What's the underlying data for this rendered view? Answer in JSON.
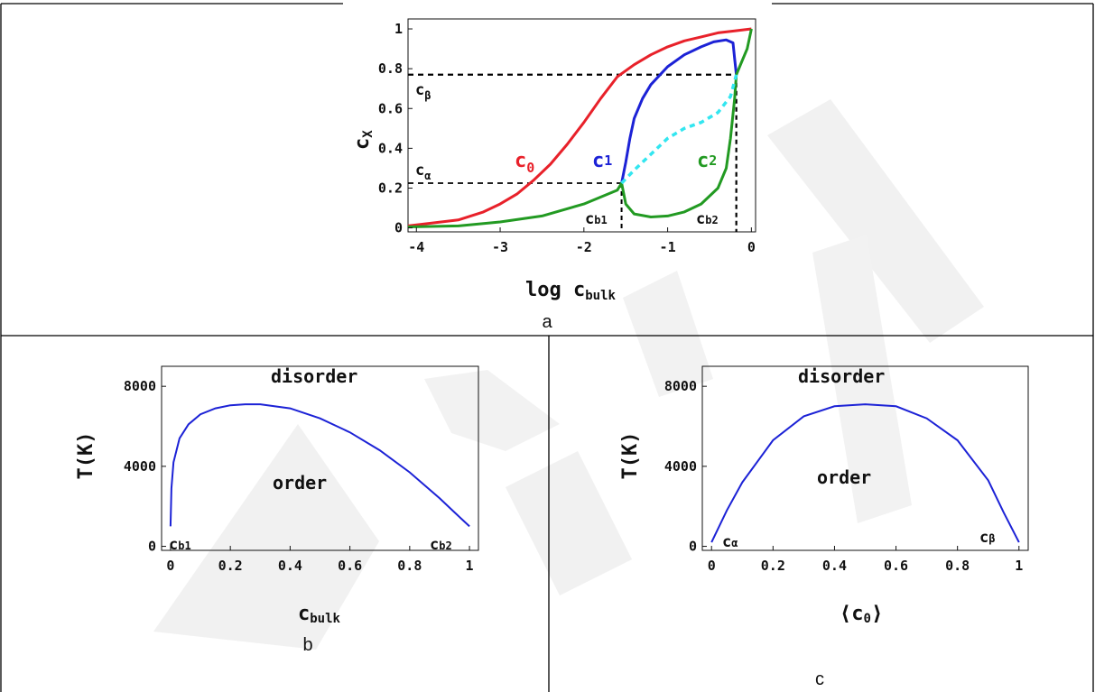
{
  "watermark": "EPRINT",
  "captions": {
    "a": "a",
    "b": "b",
    "c": "c"
  },
  "panel_a": {
    "xlabel": "log c",
    "xlabel_sub": "bulk",
    "ylabel": "c",
    "ylabel_sub": "X",
    "xticks": [
      "-4",
      "-3",
      "-2",
      "-1",
      "0"
    ],
    "yticks": [
      "0",
      "0.2",
      "0.4",
      "0.6",
      "0.8",
      "1"
    ],
    "labels": {
      "c_beta": "c",
      "c_beta_sub": "β",
      "c_alpha": "c",
      "c_alpha_sub": "α",
      "c0": "c",
      "c0_sub": "0",
      "c1": "c",
      "c1_sub": "1",
      "c2": "c",
      "c2_sub": "2",
      "cb1": "c",
      "cb1_sub": "b1",
      "cb2": "c",
      "cb2_sub": "b2"
    },
    "colors": {
      "c0": "#e8212a",
      "c1": "#1c22d6",
      "c2": "#229a22",
      "unstable": "#33e6f0"
    }
  },
  "panel_b": {
    "xlabel": "c",
    "xlabel_sub": "bulk",
    "ylabel": "T(K)",
    "xticks": [
      "0",
      "0.2",
      "0.4",
      "0.6",
      "0.8",
      "1"
    ],
    "yticks": [
      "0",
      "4000",
      "8000"
    ],
    "region_top": "disorder",
    "region_inner": "order",
    "end_left": "c",
    "end_left_sub": "b1",
    "end_right": "c",
    "end_right_sub": "b2",
    "color": "#1c22d6"
  },
  "panel_c": {
    "xlabel": "⟨c",
    "xlabel_sub": "0",
    "xlabel_close": "⟩",
    "ylabel": "T(K)",
    "xticks": [
      "0",
      "0.2",
      "0.4",
      "0.6",
      "0.8",
      "1"
    ],
    "yticks": [
      "0",
      "4000",
      "8000"
    ],
    "region_top": "disorder",
    "region_inner": "order",
    "end_left": "c",
    "end_left_sub": "α",
    "end_right": "c",
    "end_right_sub": "β",
    "color": "#1c22d6"
  },
  "chart_data": [
    {
      "type": "line",
      "xlabel": "log c_bulk",
      "ylabel": "c_X",
      "xlim": [
        -4.1,
        0.05
      ],
      "ylim": [
        -0.02,
        1.05
      ],
      "reference_lines": {
        "c_alpha": 0.225,
        "c_beta": 0.77,
        "log_cb1": -1.55,
        "log_cb2": -0.18
      },
      "series": [
        {
          "name": "c0",
          "x": [
            -4.1,
            -3.5,
            -3.2,
            -3.0,
            -2.8,
            -2.6,
            -2.4,
            -2.2,
            -2.0,
            -1.8,
            -1.6,
            -1.4,
            -1.2,
            -1.0,
            -0.8,
            -0.6,
            -0.4,
            -0.2,
            0.0
          ],
          "y": [
            0.01,
            0.04,
            0.08,
            0.12,
            0.17,
            0.24,
            0.32,
            0.42,
            0.53,
            0.65,
            0.76,
            0.82,
            0.87,
            0.91,
            0.94,
            0.96,
            0.98,
            0.99,
            1.0
          ]
        },
        {
          "name": "c1",
          "x": [
            -1.55,
            -1.5,
            -1.45,
            -1.4,
            -1.3,
            -1.2,
            -1.0,
            -0.8,
            -0.6,
            -0.45,
            -0.3,
            -0.22,
            -0.2,
            -0.18
          ],
          "y": [
            0.225,
            0.33,
            0.45,
            0.55,
            0.65,
            0.72,
            0.81,
            0.87,
            0.91,
            0.935,
            0.945,
            0.93,
            0.85,
            0.77
          ]
        },
        {
          "name": "c2",
          "x": [
            -4.1,
            -3.5,
            -3.0,
            -2.5,
            -2.0,
            -1.6,
            -1.55,
            -1.5,
            -1.4,
            -1.2,
            -1.0,
            -0.8,
            -0.6,
            -0.4,
            -0.3,
            -0.25,
            -0.2,
            -0.18,
            -0.12,
            -0.05,
            0.0
          ],
          "y": [
            0.005,
            0.01,
            0.03,
            0.06,
            0.12,
            0.19,
            0.225,
            0.12,
            0.07,
            0.055,
            0.06,
            0.08,
            0.12,
            0.2,
            0.3,
            0.45,
            0.65,
            0.77,
            0.83,
            0.9,
            1.0
          ]
        },
        {
          "name": "unstable",
          "x": [
            -1.55,
            -1.4,
            -1.2,
            -1.0,
            -0.8,
            -0.6,
            -0.4,
            -0.25,
            -0.18
          ],
          "y": [
            0.225,
            0.29,
            0.37,
            0.45,
            0.5,
            0.53,
            0.58,
            0.66,
            0.77
          ]
        }
      ]
    },
    {
      "type": "line",
      "xlabel": "c_bulk",
      "ylabel": "T(K)",
      "xlim": [
        -0.03,
        1.03
      ],
      "ylim": [
        -200,
        9000
      ],
      "series": [
        {
          "name": "T",
          "x": [
            0.0,
            0.003,
            0.01,
            0.03,
            0.06,
            0.1,
            0.15,
            0.2,
            0.25,
            0.3,
            0.4,
            0.5,
            0.6,
            0.7,
            0.8,
            0.9,
            0.95,
            1.0
          ],
          "y": [
            1000,
            2900,
            4200,
            5400,
            6100,
            6600,
            6900,
            7050,
            7100,
            7100,
            6900,
            6400,
            5700,
            4800,
            3700,
            2400,
            1700,
            1000
          ]
        }
      ]
    },
    {
      "type": "line",
      "xlabel": "⟨c0⟩",
      "ylabel": "T(K)",
      "xlim": [
        -0.03,
        1.03
      ],
      "ylim": [
        -200,
        9000
      ],
      "series": [
        {
          "name": "T",
          "x": [
            0.0,
            0.05,
            0.1,
            0.2,
            0.3,
            0.4,
            0.5,
            0.6,
            0.7,
            0.8,
            0.9,
            0.95,
            1.0
          ],
          "y": [
            200,
            1800,
            3200,
            5300,
            6500,
            7000,
            7100,
            7000,
            6400,
            5300,
            3300,
            1700,
            200
          ]
        }
      ]
    }
  ]
}
